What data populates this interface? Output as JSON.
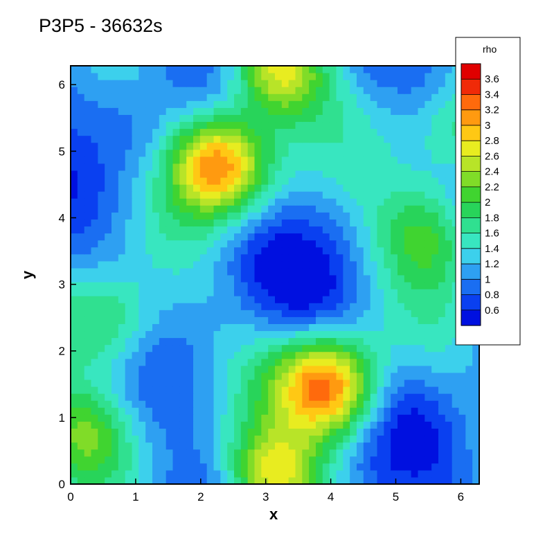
{
  "chart_data": {
    "type": "heatmap",
    "title": "P3P5 - 36632s",
    "xlabel": "x",
    "ylabel": "y",
    "xlim": [
      0,
      6.2832
    ],
    "ylim": [
      0,
      6.2832
    ],
    "x_ticks": [
      0,
      1,
      2,
      3,
      4,
      5,
      6
    ],
    "y_ticks": [
      0,
      1,
      2,
      3,
      4,
      5,
      6
    ],
    "legend": {
      "title": "rho",
      "placement": "top-right",
      "levels": [
        0.6,
        0.8,
        1,
        1.2,
        1.4,
        1.6,
        1.8,
        2,
        2.2,
        2.4,
        2.6,
        2.8,
        3,
        3.2,
        3.4,
        3.6
      ],
      "labels": [
        "3.6",
        "3.4",
        "3.2",
        "3",
        "2.8",
        "2.6",
        "2.4",
        "2.2",
        "2",
        "1.8",
        "1.6",
        "1.4",
        "1.2",
        "1",
        "0.8",
        "0.6"
      ]
    },
    "colormap": [
      "#0010e0",
      "#0a40f0",
      "#1a6ef2",
      "#2ea0f2",
      "#3cd0ec",
      "#38e6c0",
      "#30e090",
      "#28d45a",
      "#40d430",
      "#80dc28",
      "#b8e428",
      "#e8ec20",
      "#ffc814",
      "#ff9a10",
      "#ff6a0c",
      "#f02a08",
      "#e00000"
    ],
    "grid": false,
    "contour_lines": true
  }
}
